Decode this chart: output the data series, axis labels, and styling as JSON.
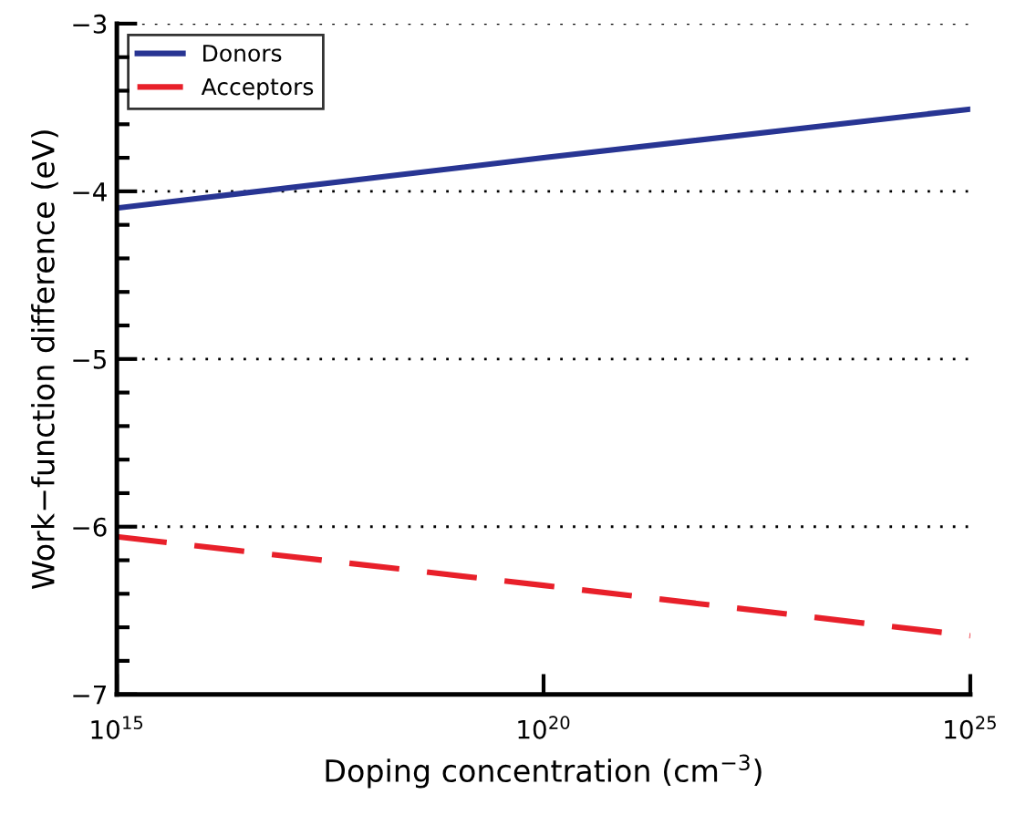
{
  "chart_data": {
    "type": "line",
    "xlabel": "Doping concentration (cm$^{−3}$)",
    "ylabel": "Work−function difference (eV)",
    "x": [
      1000000000000000.0,
      1e+20,
      1e+25
    ],
    "series": [
      {
        "name": "Donors",
        "color": "#283593",
        "values": [
          -4.1,
          -3.8,
          -3.51
        ],
        "line_style": "solid"
      },
      {
        "name": "Acceptors",
        "color": "#e8202a",
        "values": [
          -6.06,
          -6.35,
          -6.65
        ],
        "line_style": "dashed"
      }
    ],
    "log": "x",
    "xlim": [
      1000000000000000.0,
      1e+25
    ],
    "xticks": [
      {
        "value": 1000000000000000.0,
        "label": "10$^{15}$"
      },
      {
        "value": 1e+20,
        "label": "10$^{20}$"
      },
      {
        "value": 1e+25,
        "label": "10$^{25}$"
      }
    ],
    "ylim": [
      -7,
      -3
    ],
    "yticks": [
      {
        "value": -7,
        "label": "−7"
      },
      {
        "value": -6,
        "label": "−6"
      },
      {
        "value": -5,
        "label": "−5"
      },
      {
        "value": -4,
        "label": "−4"
      },
      {
        "value": -3,
        "label": "−3"
      }
    ],
    "grid": "y",
    "legend": "top left",
    "marker": "none"
  }
}
